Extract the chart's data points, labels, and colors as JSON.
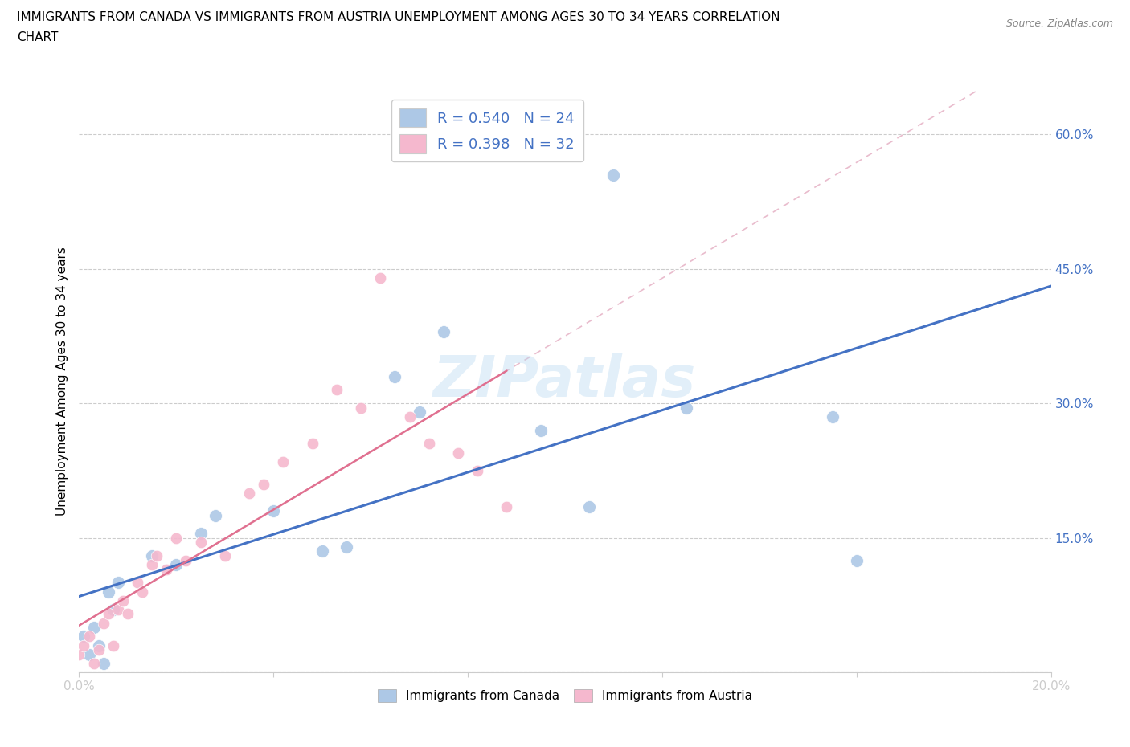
{
  "title_line1": "IMMIGRANTS FROM CANADA VS IMMIGRANTS FROM AUSTRIA UNEMPLOYMENT AMONG AGES 30 TO 34 YEARS CORRELATION",
  "title_line2": "CHART",
  "source_text": "Source: ZipAtlas.com",
  "ylabel": "Unemployment Among Ages 30 to 34 years",
  "xlim": [
    0.0,
    0.2
  ],
  "ylim": [
    0.0,
    0.65
  ],
  "x_ticks": [
    0.0,
    0.04,
    0.08,
    0.12,
    0.16,
    0.2
  ],
  "x_tick_labels": [
    "0.0%",
    "",
    "",
    "",
    "",
    "20.0%"
  ],
  "y_ticks": [
    0.0,
    0.15,
    0.3,
    0.45,
    0.6
  ],
  "y_tick_labels": [
    "",
    "15.0%",
    "30.0%",
    "45.0%",
    "60.0%"
  ],
  "canada_color": "#adc8e6",
  "austria_color": "#f5b8ce",
  "canada_line_color": "#4472c4",
  "austria_line_color": "#e07090",
  "canada_R": 0.54,
  "canada_N": 24,
  "austria_R": 0.398,
  "austria_N": 32,
  "watermark": "ZIPatlas",
  "canada_x": [
    0.001,
    0.002,
    0.003,
    0.004,
    0.005,
    0.006,
    0.007,
    0.008,
    0.015,
    0.02,
    0.025,
    0.028,
    0.04,
    0.05,
    0.055,
    0.065,
    0.07,
    0.075,
    0.095,
    0.105,
    0.11,
    0.125,
    0.155,
    0.16
  ],
  "canada_y": [
    0.04,
    0.02,
    0.05,
    0.03,
    0.01,
    0.09,
    0.07,
    0.1,
    0.13,
    0.12,
    0.155,
    0.175,
    0.18,
    0.135,
    0.14,
    0.33,
    0.29,
    0.38,
    0.27,
    0.185,
    0.555,
    0.295,
    0.285,
    0.125
  ],
  "austria_x": [
    0.0,
    0.001,
    0.002,
    0.003,
    0.004,
    0.005,
    0.006,
    0.007,
    0.008,
    0.009,
    0.01,
    0.012,
    0.013,
    0.015,
    0.016,
    0.018,
    0.02,
    0.022,
    0.025,
    0.03,
    0.035,
    0.038,
    0.042,
    0.048,
    0.053,
    0.058,
    0.062,
    0.068,
    0.072,
    0.078,
    0.082,
    0.088
  ],
  "austria_y": [
    0.02,
    0.03,
    0.04,
    0.01,
    0.025,
    0.055,
    0.065,
    0.03,
    0.07,
    0.08,
    0.065,
    0.1,
    0.09,
    0.12,
    0.13,
    0.115,
    0.15,
    0.125,
    0.145,
    0.13,
    0.2,
    0.21,
    0.235,
    0.255,
    0.315,
    0.295,
    0.44,
    0.285,
    0.255,
    0.245,
    0.225,
    0.185
  ]
}
